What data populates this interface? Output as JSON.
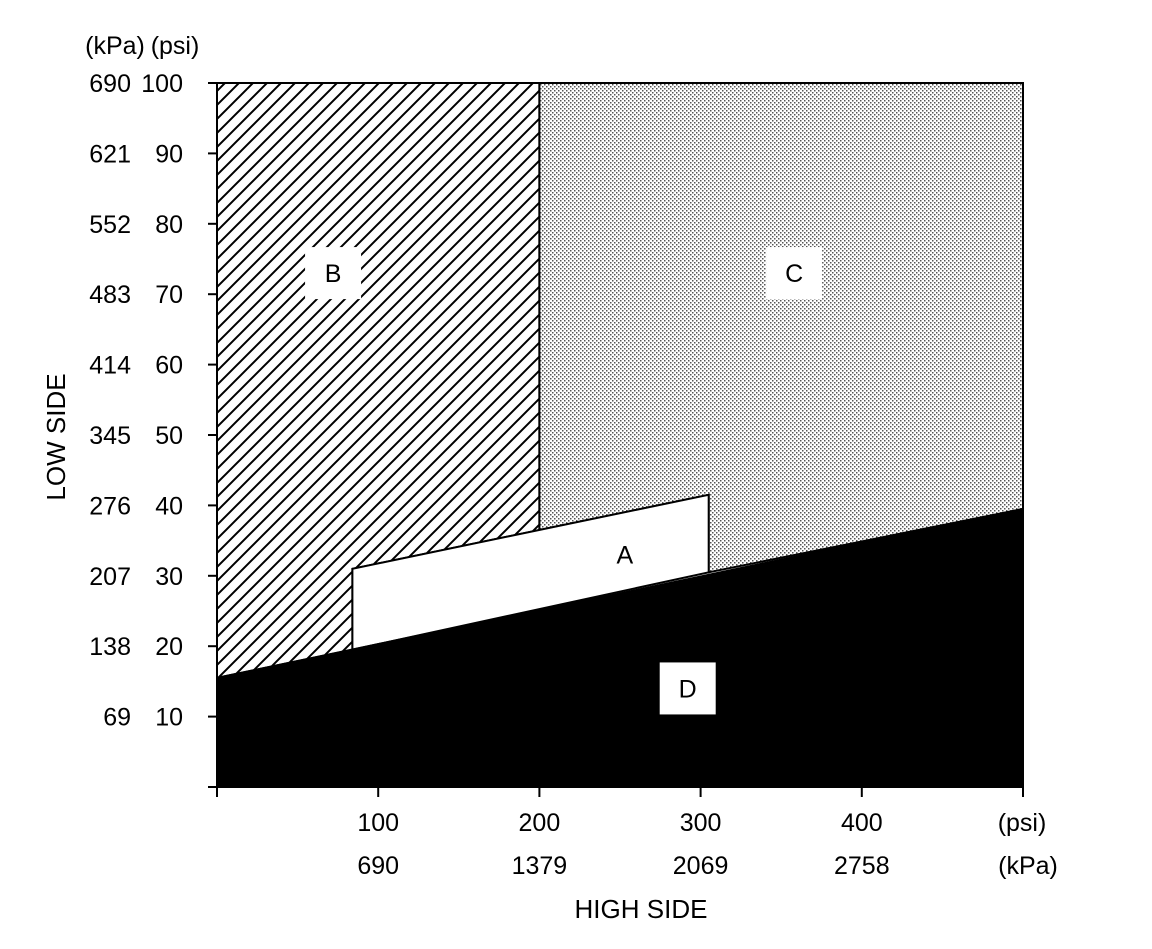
{
  "chart_data": {
    "type": "area",
    "xlabel": "HIGH SIDE",
    "ylabel": "LOW SIDE",
    "x_unit_primary": "(psi)",
    "x_unit_secondary": "(kPa)",
    "y_unit_primary": "(psi)",
    "y_unit_secondary": "(kPa)",
    "xlim": [
      0,
      500
    ],
    "ylim": [
      0,
      100
    ],
    "x_ticks": [
      {
        "psi": 100,
        "kpa": "690"
      },
      {
        "psi": 200,
        "kpa": "1379"
      },
      {
        "psi": 300,
        "kpa": "2069"
      },
      {
        "psi": 400,
        "kpa": "2758"
      }
    ],
    "y_ticks": [
      {
        "psi": 10,
        "kpa": "69"
      },
      {
        "psi": 20,
        "kpa": "138"
      },
      {
        "psi": 30,
        "kpa": "207"
      },
      {
        "psi": 40,
        "kpa": "276"
      },
      {
        "psi": 50,
        "kpa": "345"
      },
      {
        "psi": 60,
        "kpa": "414"
      },
      {
        "psi": 70,
        "kpa": "483"
      },
      {
        "psi": 80,
        "kpa": "552"
      },
      {
        "psi": 90,
        "kpa": "621"
      },
      {
        "psi": 100,
        "kpa": "690"
      }
    ],
    "regions": [
      {
        "label": "B",
        "fill": "hatch",
        "label_at": [
          72,
          73
        ],
        "points": [
          [
            0,
            100
          ],
          [
            200,
            100
          ],
          [
            200,
            36.5
          ],
          [
            84,
            31
          ],
          [
            84,
            19.5
          ],
          [
            0,
            15.5
          ]
        ]
      },
      {
        "label": "C",
        "fill": "dots",
        "label_at": [
          358,
          73
        ],
        "points": [
          [
            200,
            100
          ],
          [
            500,
            100
          ],
          [
            500,
            39.5
          ],
          [
            305,
            30.5
          ],
          [
            305,
            41.5
          ],
          [
            200,
            36.5
          ]
        ]
      },
      {
        "label": "A",
        "fill": "white",
        "label_at": [
          253,
          33
        ],
        "points": [
          [
            84,
            31
          ],
          [
            305,
            41.5
          ],
          [
            305,
            30.5
          ],
          [
            84,
            19.5
          ]
        ]
      },
      {
        "label": "D",
        "fill": "black",
        "label_at": [
          292,
          14
        ],
        "points": [
          [
            0,
            15.5
          ],
          [
            500,
            39.5
          ],
          [
            500,
            0
          ],
          [
            0,
            0
          ]
        ]
      }
    ]
  }
}
